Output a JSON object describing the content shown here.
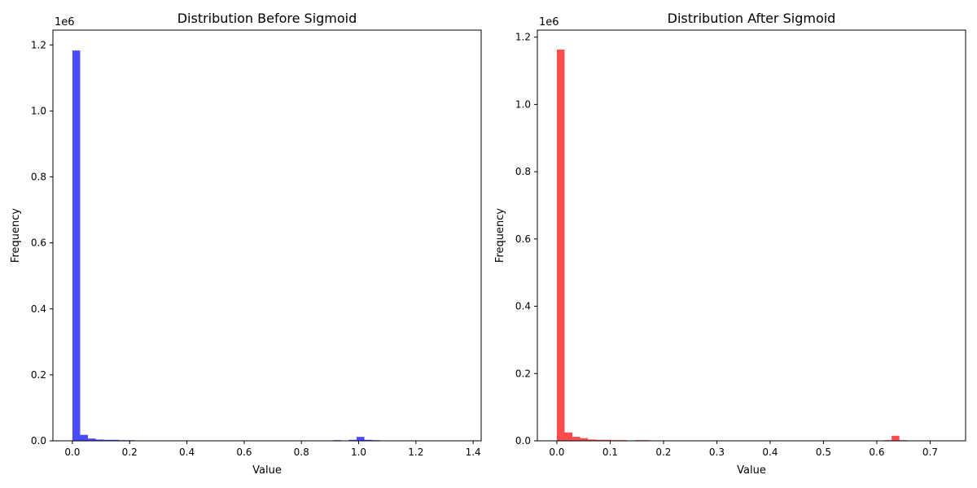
{
  "chart_data": [
    {
      "type": "bar",
      "title": "Distribution Before Sigmoid",
      "xlabel": "Value",
      "ylabel": "Frequency",
      "y_offset_label": "1e6",
      "color": "#0000ff",
      "opacity": 0.7,
      "xlim": [
        -0.068,
        1.428
      ],
      "ylim": [
        0,
        1.245
      ],
      "xticks": [
        0.0,
        0.2,
        0.4,
        0.6,
        0.8,
        1.0,
        1.2,
        1.4
      ],
      "xtick_labels": [
        "0.0",
        "0.2",
        "0.4",
        "0.6",
        "0.8",
        "1.0",
        "1.2",
        "1.4"
      ],
      "yticks": [
        0,
        0.2,
        0.4,
        0.6,
        0.8,
        1.0,
        1.2
      ],
      "ytick_labels": [
        "0.0",
        "0.2",
        "0.4",
        "0.6",
        "0.8",
        "1.0",
        "1.2"
      ],
      "bin_width": 0.0272,
      "bin_starts": [
        0.0,
        0.0272,
        0.0544,
        0.0816,
        0.1088,
        0.136,
        0.1632,
        0.1904,
        0.2176,
        0.9112,
        0.9384,
        0.9656,
        0.9928,
        1.02,
        1.0472
      ],
      "values": [
        1.183,
        0.018,
        0.007,
        0.004,
        0.003,
        0.003,
        0.002,
        0.002,
        0.001,
        0.002,
        0.001,
        0.003,
        0.012,
        0.003,
        0.002
      ],
      "grid": false,
      "legend": false
    },
    {
      "type": "bar",
      "title": "Distribution After Sigmoid",
      "xlabel": "Value",
      "ylabel": "Frequency",
      "y_offset_label": "1e6",
      "color": "#ff0000",
      "opacity": 0.7,
      "xlim": [
        -0.0365,
        0.7665
      ],
      "ylim": [
        0,
        1.221
      ],
      "xticks": [
        0.0,
        0.1,
        0.2,
        0.3,
        0.4,
        0.5,
        0.6,
        0.7
      ],
      "xtick_labels": [
        "0.0",
        "0.1",
        "0.2",
        "0.3",
        "0.4",
        "0.5",
        "0.6",
        "0.7"
      ],
      "yticks": [
        0,
        0.2,
        0.4,
        0.6,
        0.8,
        1.0,
        1.2
      ],
      "ytick_labels": [
        "0.0",
        "0.2",
        "0.4",
        "0.6",
        "0.8",
        "1.0",
        "1.2"
      ],
      "bin_width": 0.0146,
      "bin_starts": [
        0.0,
        0.0146,
        0.0292,
        0.0438,
        0.0584,
        0.073,
        0.0876,
        0.1022,
        0.1168,
        0.146,
        0.1606,
        0.6132,
        0.6278,
        0.6424
      ],
      "values": [
        1.163,
        0.025,
        0.012,
        0.008,
        0.004,
        0.003,
        0.003,
        0.002,
        0.002,
        0.002,
        0.002,
        0.002,
        0.015,
        0.002
      ],
      "grid": false,
      "legend": false
    }
  ]
}
